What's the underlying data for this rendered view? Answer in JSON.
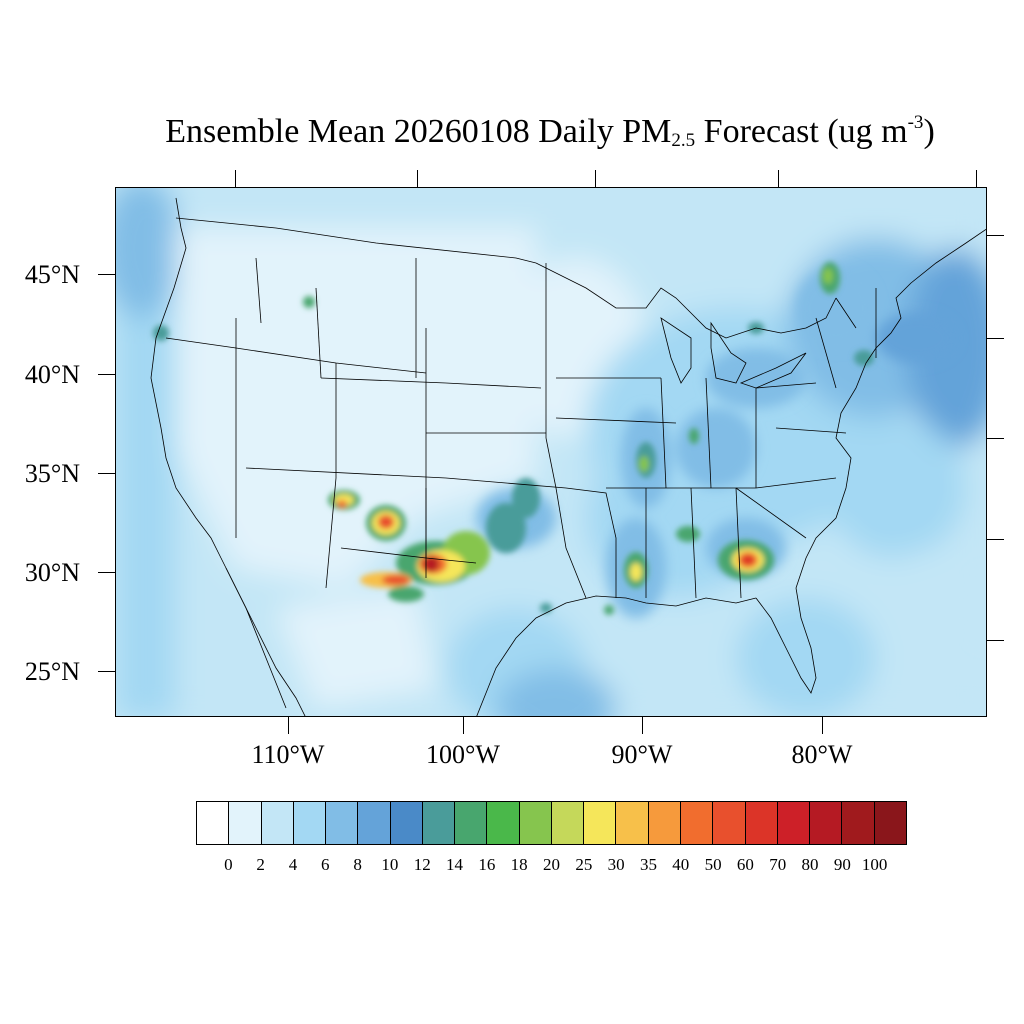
{
  "title": {
    "main": "Ensemble Mean 20260108 Daily PM",
    "sub": "2.5",
    "tail": " Forecast (ug m",
    "sup": "-3",
    "close": ")"
  },
  "map": {
    "region": "Contiguous United States",
    "lat_labels": [
      "45°N",
      "40°N",
      "35°N",
      "30°N",
      "25°N"
    ],
    "lon_labels": [
      "110°W",
      "100°W",
      "90°W",
      "80°W"
    ],
    "background_color": "#c3e6f6",
    "hotspots": [
      {
        "name": "Southern New Mexico / West Texas",
        "peak_level": "70"
      },
      {
        "name": "Central New Mexico",
        "peak_level": "60"
      },
      {
        "name": "Georgia",
        "peak_level": "60"
      },
      {
        "name": "Southern Mississippi",
        "peak_level": "30"
      },
      {
        "name": "Western Kentucky / Illinois",
        "peak_level": "25"
      },
      {
        "name": "Northern New York",
        "peak_level": "20"
      }
    ]
  },
  "colorbar": {
    "labels": [
      "0",
      "2",
      "4",
      "6",
      "8",
      "10",
      "12",
      "14",
      "16",
      "18",
      "20",
      "25",
      "30",
      "35",
      "40",
      "50",
      "60",
      "70",
      "80",
      "90",
      "100"
    ],
    "colors": [
      "#ffffff",
      "#e2f3fb",
      "#c3e6f6",
      "#a3d8f3",
      "#81bde6",
      "#64a3d9",
      "#4a8ac8",
      "#4a9c9a",
      "#48a66e",
      "#4ab84a",
      "#86c54e",
      "#c5d85a",
      "#f5e65a",
      "#f7c04a",
      "#f69a3c",
      "#f16d2e",
      "#e8502d",
      "#dc3428",
      "#cd2028",
      "#b51a23",
      "#a01a1d",
      "#8a161b"
    ]
  }
}
